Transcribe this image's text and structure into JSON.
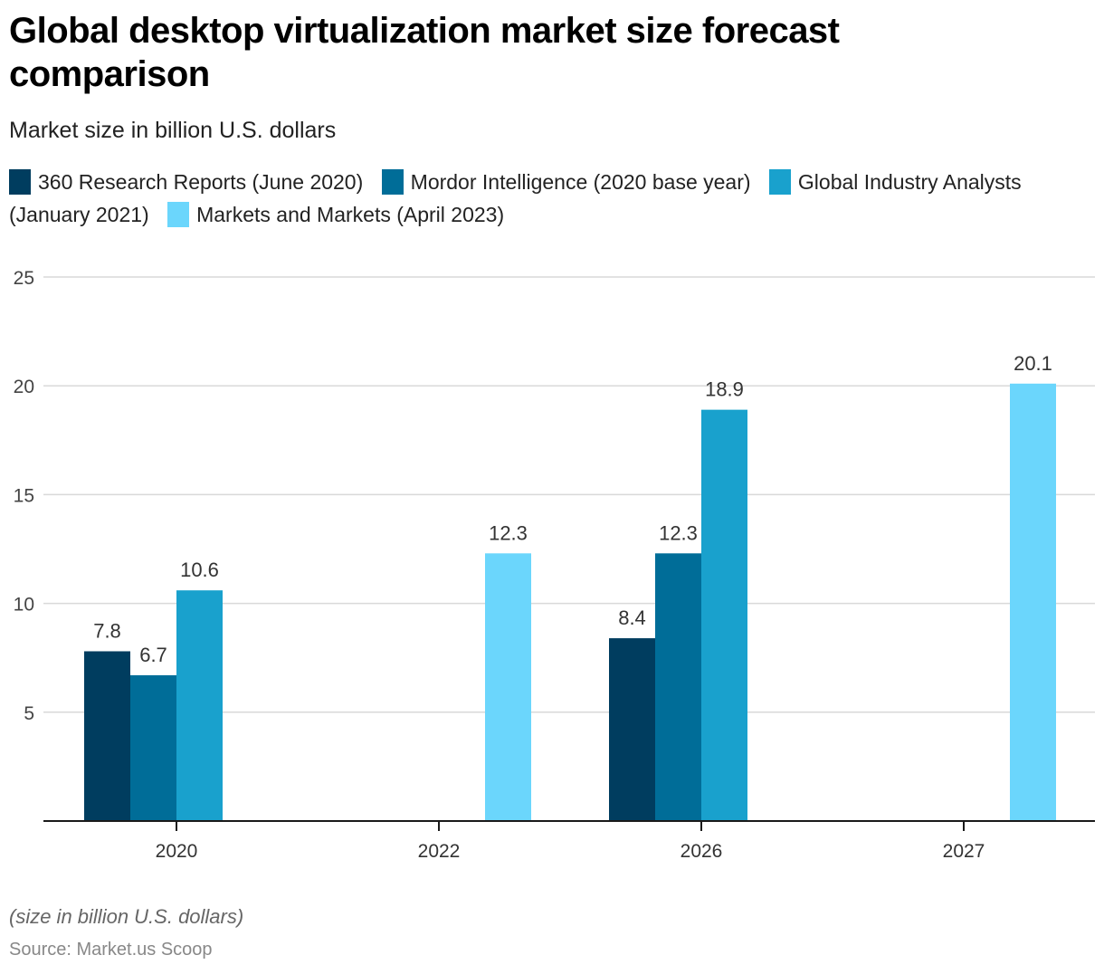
{
  "chart_data": {
    "type": "bar",
    "title": "Global desktop virtualization market size forecast comparison",
    "subtitle": "Market size in billion U.S. dollars",
    "xlabel": "",
    "ylabel": "",
    "ylim": [
      0,
      25
    ],
    "yticks": [
      5,
      10,
      15,
      20,
      25
    ],
    "grid": true,
    "legend_position": "top",
    "categories": [
      "2020",
      "2022",
      "2026",
      "2027"
    ],
    "series": [
      {
        "name": "360 Research Reports (June 2020)",
        "color": "#003d5f",
        "values": [
          7.8,
          null,
          8.4,
          null
        ]
      },
      {
        "name": "Mordor Intelligence (2020 base year)",
        "color": "#006d98",
        "values": [
          6.7,
          null,
          12.3,
          null
        ]
      },
      {
        "name": "Global Industry Analysts (January 2021)",
        "color": "#19a1cd",
        "values": [
          10.6,
          null,
          18.9,
          null
        ]
      },
      {
        "name": "Markets and Markets (April 2023)",
        "color": "#6bd6fc",
        "values": [
          null,
          12.3,
          null,
          20.1
        ]
      }
    ],
    "note": "(size in billion U.S. dollars)",
    "source": "Source: Market.us Scoop"
  }
}
